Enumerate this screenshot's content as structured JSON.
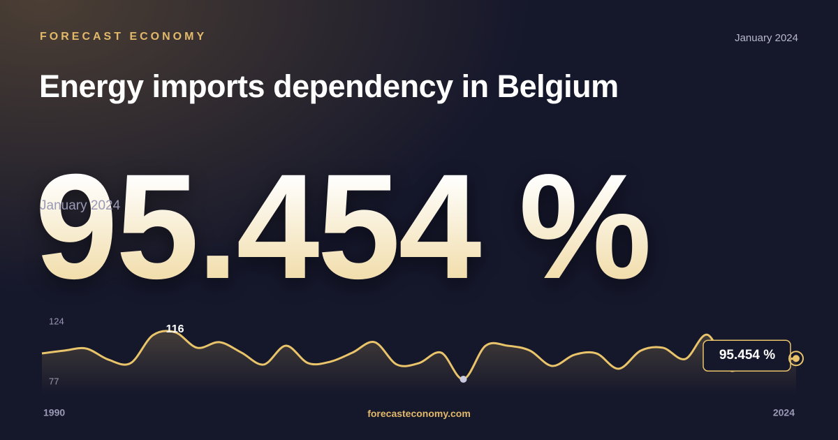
{
  "header": {
    "brand": "FORECAST ECONOMY",
    "date": "January 2024",
    "title": "Energy imports dependency in Belgium"
  },
  "headline": {
    "value": "95.454 %",
    "date": "January 2024"
  },
  "footer": {
    "site": "forecasteconomy.com"
  },
  "chart_data": {
    "type": "line",
    "x": [
      1990,
      1991,
      1992,
      1993,
      1994,
      1995,
      1996,
      1997,
      1998,
      1999,
      2000,
      2001,
      2002,
      2003,
      2004,
      2005,
      2006,
      2007,
      2008,
      2009,
      2010,
      2011,
      2012,
      2013,
      2014,
      2015,
      2016,
      2017,
      2018,
      2019,
      2020,
      2021,
      2022,
      2023,
      2024
    ],
    "values": [
      99.4,
      101.6,
      103.2,
      94.5,
      91.8,
      113.6,
      116,
      103.8,
      108.2,
      100,
      90.7,
      105.4,
      91.8,
      92.9,
      100,
      108.2,
      90.7,
      91.8,
      100,
      79.2,
      105.4,
      105.4,
      101.6,
      89.6,
      98.3,
      99.4,
      87.4,
      101.6,
      103.8,
      95,
      114,
      86.3,
      94.5,
      94.5,
      95.454
    ],
    "value_labels": [
      null,
      null,
      null,
      null,
      null,
      null,
      null,
      null,
      null,
      null,
      null,
      null,
      null,
      null,
      null,
      null,
      null,
      null,
      null,
      null,
      null,
      null,
      null,
      null,
      null,
      null,
      null,
      null,
      null,
      null,
      null,
      null,
      null,
      null,
      "95.454 %"
    ],
    "color": "#e9c46a",
    "xlim": [
      1990,
      2024
    ],
    "xticks": [
      1990,
      2024
    ],
    "ylim": [
      77,
      124
    ],
    "yticks": [
      77,
      124
    ]
  }
}
